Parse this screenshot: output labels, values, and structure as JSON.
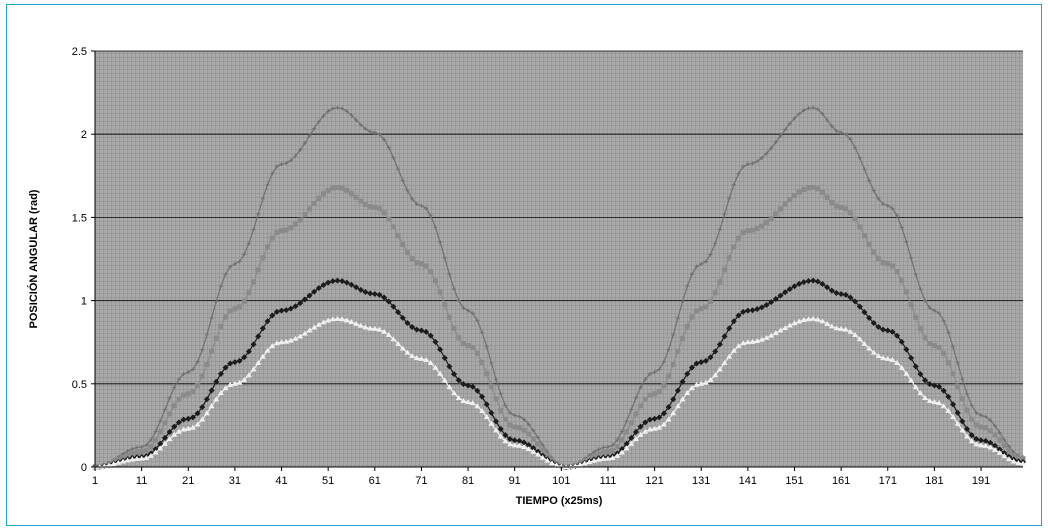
{
  "chart_data": {
    "type": "line",
    "title": "",
    "xlabel": "TIEMPO (x25ms)",
    "ylabel": "POSICIÓN ANGULAR (rad)",
    "xlim": [
      1,
      200
    ],
    "ylim": [
      0,
      2.5
    ],
    "yticks": [
      0,
      0.5,
      1,
      1.5,
      2,
      2.5
    ],
    "ytick_labels": [
      "0",
      "0.5",
      "1",
      "1.5",
      "2",
      "2.5"
    ],
    "xticks": [
      1,
      11,
      21,
      31,
      41,
      51,
      61,
      71,
      81,
      91,
      101,
      111,
      121,
      131,
      141,
      151,
      161,
      171,
      181,
      191
    ],
    "xtick_labels": [
      "1",
      "11",
      "21",
      "31",
      "41",
      "51",
      "61",
      "71",
      "81",
      "91",
      "101",
      "111",
      "121",
      "131",
      "141",
      "151",
      "161",
      "171",
      "181",
      "191"
    ],
    "grid": true,
    "legend": "none",
    "plot_background": "#a8a8a8",
    "gridline_color": "#000000",
    "series": [
      {
        "color": "#707070",
        "marker": "plus",
        "peak": 2.16,
        "x": [
          1,
          11,
          21,
          31,
          41,
          53,
          61,
          71,
          81,
          91,
          102,
          111,
          121,
          131,
          141,
          155,
          161,
          171,
          181,
          191,
          200
        ],
        "values": [
          0.0,
          0.12,
          0.57,
          1.22,
          1.82,
          2.16,
          2.01,
          1.57,
          0.94,
          0.31,
          0.0,
          0.12,
          0.57,
          1.22,
          1.82,
          2.16,
          2.01,
          1.57,
          0.94,
          0.31,
          0.06
        ]
      },
      {
        "color": "#8a8a8a",
        "marker": "square",
        "peak": 1.68,
        "x": [
          1,
          11,
          21,
          31,
          41,
          53,
          61,
          71,
          81,
          91,
          102,
          111,
          121,
          131,
          141,
          155,
          161,
          171,
          181,
          191,
          200
        ],
        "values": [
          0.0,
          0.09,
          0.44,
          0.95,
          1.42,
          1.68,
          1.56,
          1.22,
          0.73,
          0.24,
          0.0,
          0.09,
          0.44,
          0.95,
          1.42,
          1.68,
          1.56,
          1.22,
          0.73,
          0.24,
          0.05
        ]
      },
      {
        "color": "#1c1c1c",
        "marker": "diamond",
        "peak": 1.12,
        "x": [
          1,
          11,
          21,
          31,
          41,
          53,
          61,
          71,
          81,
          91,
          102,
          111,
          121,
          131,
          141,
          155,
          161,
          171,
          181,
          191,
          200
        ],
        "values": [
          0.0,
          0.06,
          0.29,
          0.63,
          0.94,
          1.12,
          1.04,
          0.82,
          0.49,
          0.16,
          0.0,
          0.06,
          0.29,
          0.63,
          0.94,
          1.12,
          1.04,
          0.82,
          0.49,
          0.16,
          0.03
        ]
      },
      {
        "color": "#f0f0f0",
        "marker": "triangle",
        "peak": 0.89,
        "x": [
          1,
          11,
          21,
          31,
          41,
          53,
          61,
          71,
          81,
          91,
          102,
          111,
          121,
          131,
          141,
          155,
          161,
          171,
          181,
          191,
          200
        ],
        "values": [
          0.0,
          0.05,
          0.23,
          0.5,
          0.75,
          0.89,
          0.83,
          0.65,
          0.39,
          0.13,
          0.0,
          0.05,
          0.23,
          0.5,
          0.75,
          0.89,
          0.83,
          0.65,
          0.39,
          0.13,
          0.02
        ]
      }
    ]
  }
}
